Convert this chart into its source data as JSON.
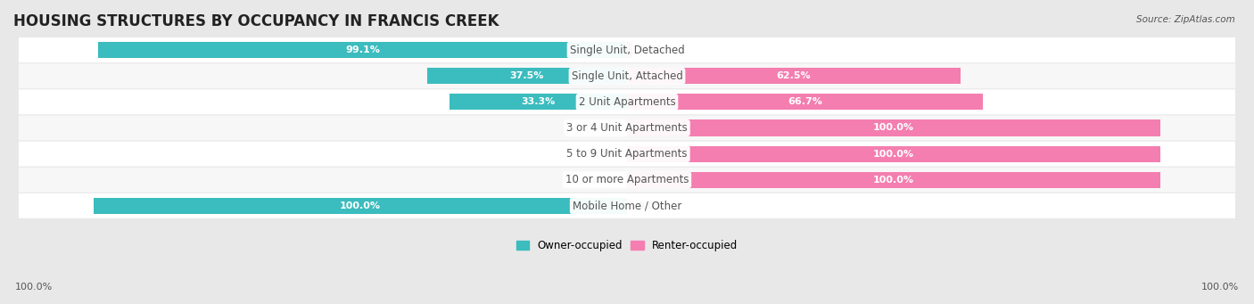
{
  "title": "HOUSING STRUCTURES BY OCCUPANCY IN FRANCIS CREEK",
  "source": "Source: ZipAtlas.com",
  "categories": [
    "Single Unit, Detached",
    "Single Unit, Attached",
    "2 Unit Apartments",
    "3 or 4 Unit Apartments",
    "5 to 9 Unit Apartments",
    "10 or more Apartments",
    "Mobile Home / Other"
  ],
  "owner_pct": [
    99.1,
    37.5,
    33.3,
    0.0,
    0.0,
    0.0,
    100.0
  ],
  "renter_pct": [
    0.93,
    62.5,
    66.7,
    100.0,
    100.0,
    100.0,
    0.0
  ],
  "owner_color": "#3bbcbe",
  "renter_color": "#f47eb0",
  "owner_label": "Owner-occupied",
  "renter_label": "Renter-occupied",
  "bar_height": 0.62,
  "bg_color": "#e8e8e8",
  "row_bg_light": "#f7f7f7",
  "row_bg_white": "#ffffff",
  "title_color": "#222222",
  "label_color": "#555555",
  "pct_text_color_inside": "#ffffff",
  "pct_text_color_outside": "#555555",
  "title_fontsize": 12,
  "cat_fontsize": 8.5,
  "pct_fontsize": 8,
  "source_fontsize": 7.5,
  "legend_fontsize": 8.5
}
